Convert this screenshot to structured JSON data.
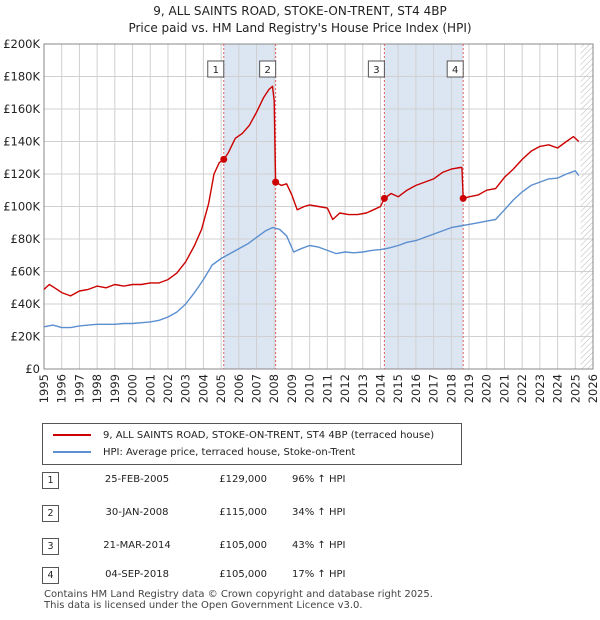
{
  "chart_data": {
    "type": "line",
    "title": "9, ALL SAINTS ROAD, STOKE-ON-TRENT, ST4 4BP",
    "subtitle": "Price paid vs. HM Land Registry's House Price Index (HPI)",
    "xlabel": "",
    "ylabel": "",
    "xlim": [
      1995,
      2026
    ],
    "ylim": [
      0,
      200000
    ],
    "x_ticks": [
      "1995",
      "1996",
      "1997",
      "1998",
      "1999",
      "2000",
      "2001",
      "2002",
      "2003",
      "2004",
      "2005",
      "2006",
      "2007",
      "2008",
      "2009",
      "2010",
      "2011",
      "2012",
      "2013",
      "2014",
      "2015",
      "2016",
      "2017",
      "2018",
      "2019",
      "2020",
      "2021",
      "2022",
      "2023",
      "2024",
      "2025",
      "2026"
    ],
    "y_ticks": [
      {
        "value": 0,
        "label": "£0"
      },
      {
        "value": 20000,
        "label": "£20K"
      },
      {
        "value": 40000,
        "label": "£40K"
      },
      {
        "value": 60000,
        "label": "£60K"
      },
      {
        "value": 80000,
        "label": "£80K"
      },
      {
        "value": 100000,
        "label": "£100K"
      },
      {
        "value": 120000,
        "label": "£120K"
      },
      {
        "value": 140000,
        "label": "£140K"
      },
      {
        "value": 160000,
        "label": "£160K"
      },
      {
        "value": 180000,
        "label": "£180K"
      },
      {
        "value": 200000,
        "label": "£200K"
      }
    ],
    "grid": true,
    "future_hatch_from": 2025.3,
    "series": [
      {
        "name": "9, ALL SAINTS ROAD, STOKE-ON-TRENT, ST4 4BP (terraced house)",
        "color": "#cc0000",
        "points": [
          [
            1995.0,
            49000
          ],
          [
            1995.3,
            52000
          ],
          [
            1995.6,
            50000
          ],
          [
            1996.0,
            47000
          ],
          [
            1996.5,
            45000
          ],
          [
            1997.0,
            48000
          ],
          [
            1997.5,
            49000
          ],
          [
            1998.0,
            51000
          ],
          [
            1998.5,
            50000
          ],
          [
            1999.0,
            52000
          ],
          [
            1999.5,
            51000
          ],
          [
            2000.0,
            52000
          ],
          [
            2000.5,
            52000
          ],
          [
            2001.0,
            53000
          ],
          [
            2001.5,
            53000
          ],
          [
            2002.0,
            55000
          ],
          [
            2002.5,
            59000
          ],
          [
            2003.0,
            66000
          ],
          [
            2003.5,
            76000
          ],
          [
            2003.9,
            86000
          ],
          [
            2004.3,
            102000
          ],
          [
            2004.6,
            120000
          ],
          [
            2004.9,
            127000
          ],
          [
            2005.15,
            129000
          ],
          [
            2005.4,
            133000
          ],
          [
            2005.8,
            142000
          ],
          [
            2006.2,
            145000
          ],
          [
            2006.6,
            150000
          ],
          [
            2007.0,
            158000
          ],
          [
            2007.4,
            167000
          ],
          [
            2007.7,
            172000
          ],
          [
            2007.9,
            174000
          ],
          [
            2008.0,
            165000
          ],
          [
            2008.08,
            115000
          ],
          [
            2008.4,
            113000
          ],
          [
            2008.7,
            114000
          ],
          [
            2009.0,
            107000
          ],
          [
            2009.3,
            98000
          ],
          [
            2009.7,
            100000
          ],
          [
            2010.0,
            101000
          ],
          [
            2010.5,
            100000
          ],
          [
            2011.0,
            99000
          ],
          [
            2011.3,
            92000
          ],
          [
            2011.7,
            96000
          ],
          [
            2012.2,
            95000
          ],
          [
            2012.7,
            95000
          ],
          [
            2013.2,
            96000
          ],
          [
            2013.6,
            98000
          ],
          [
            2014.0,
            100000
          ],
          [
            2014.22,
            105000
          ],
          [
            2014.6,
            108000
          ],
          [
            2015.0,
            106000
          ],
          [
            2015.5,
            110000
          ],
          [
            2016.0,
            113000
          ],
          [
            2016.5,
            115000
          ],
          [
            2017.0,
            117000
          ],
          [
            2017.5,
            121000
          ],
          [
            2018.0,
            123000
          ],
          [
            2018.5,
            124000
          ],
          [
            2018.6,
            124000
          ],
          [
            2018.67,
            105000
          ],
          [
            2019.0,
            106000
          ],
          [
            2019.5,
            107000
          ],
          [
            2020.0,
            110000
          ],
          [
            2020.5,
            111000
          ],
          [
            2021.0,
            118000
          ],
          [
            2021.5,
            123000
          ],
          [
            2022.0,
            129000
          ],
          [
            2022.5,
            134000
          ],
          [
            2023.0,
            137000
          ],
          [
            2023.5,
            138000
          ],
          [
            2024.0,
            136000
          ],
          [
            2024.5,
            140000
          ],
          [
            2024.9,
            143000
          ],
          [
            2025.2,
            140000
          ]
        ]
      },
      {
        "name": "HPI: Average price, terraced house, Stoke-on-Trent",
        "color": "#5b8fd0",
        "points": [
          [
            1995.0,
            26000
          ],
          [
            1995.5,
            27000
          ],
          [
            1996.0,
            25500
          ],
          [
            1996.5,
            25500
          ],
          [
            1997.0,
            26500
          ],
          [
            1997.5,
            27000
          ],
          [
            1998.0,
            27500
          ],
          [
            1998.5,
            27500
          ],
          [
            1999.0,
            27500
          ],
          [
            1999.5,
            28000
          ],
          [
            2000.0,
            28000
          ],
          [
            2000.5,
            28500
          ],
          [
            2001.0,
            29000
          ],
          [
            2001.5,
            30000
          ],
          [
            2002.0,
            32000
          ],
          [
            2002.5,
            35000
          ],
          [
            2003.0,
            40000
          ],
          [
            2003.5,
            47000
          ],
          [
            2004.0,
            55000
          ],
          [
            2004.5,
            64000
          ],
          [
            2005.0,
            68000
          ],
          [
            2005.5,
            71000
          ],
          [
            2006.0,
            74000
          ],
          [
            2006.5,
            77000
          ],
          [
            2007.0,
            81000
          ],
          [
            2007.5,
            85000
          ],
          [
            2007.9,
            87000
          ],
          [
            2008.3,
            86000
          ],
          [
            2008.7,
            82000
          ],
          [
            2009.1,
            72000
          ],
          [
            2009.5,
            74000
          ],
          [
            2010.0,
            76000
          ],
          [
            2010.5,
            75000
          ],
          [
            2011.0,
            73000
          ],
          [
            2011.5,
            71000
          ],
          [
            2012.0,
            72000
          ],
          [
            2012.5,
            71500
          ],
          [
            2013.0,
            72000
          ],
          [
            2013.5,
            73000
          ],
          [
            2014.0,
            73500
          ],
          [
            2014.5,
            74500
          ],
          [
            2015.0,
            76000
          ],
          [
            2015.5,
            78000
          ],
          [
            2016.0,
            79000
          ],
          [
            2016.5,
            81000
          ],
          [
            2017.0,
            83000
          ],
          [
            2017.5,
            85000
          ],
          [
            2018.0,
            87000
          ],
          [
            2018.5,
            88000
          ],
          [
            2019.0,
            89000
          ],
          [
            2019.5,
            90000
          ],
          [
            2020.0,
            91000
          ],
          [
            2020.5,
            92000
          ],
          [
            2021.0,
            98000
          ],
          [
            2021.5,
            104000
          ],
          [
            2022.0,
            109000
          ],
          [
            2022.5,
            113000
          ],
          [
            2023.0,
            115000
          ],
          [
            2023.5,
            117000
          ],
          [
            2024.0,
            117500
          ],
          [
            2024.5,
            120000
          ],
          [
            2025.0,
            122000
          ],
          [
            2025.2,
            119000
          ]
        ]
      }
    ],
    "sales": [
      {
        "num": "1",
        "x": 2005.15,
        "price": 129000,
        "date": "25-FEB-2005",
        "price_label": "£129,000",
        "hpi": "96% ↑ HPI"
      },
      {
        "num": "2",
        "x": 2008.08,
        "price": 115000,
        "date": "30-JAN-2008",
        "price_label": "£115,000",
        "hpi": "34% ↑ HPI"
      },
      {
        "num": "3",
        "x": 2014.22,
        "price": 105000,
        "date": "21-MAR-2014",
        "price_label": "£105,000",
        "hpi": "43% ↑ HPI"
      },
      {
        "num": "4",
        "x": 2018.67,
        "price": 105000,
        "date": "04-SEP-2018",
        "price_label": "£105,000",
        "hpi": "17% ↑ HPI"
      }
    ],
    "legend_position": "bottom"
  },
  "legend": {
    "property_label": "9, ALL SAINTS ROAD, STOKE-ON-TRENT, ST4 4BP (terraced house)",
    "hpi_label": "HPI: Average price, terraced house, Stoke-on-Trent"
  },
  "footer": {
    "line1": "Contains HM Land Registry data © Crown copyright and database right 2025.",
    "line2": "This data is licensed under the Open Government Licence v3.0."
  },
  "colors": {
    "property": "#cc0000",
    "hpi": "#5b8fd0",
    "shade": "#dce6f3",
    "grid": "#d0d0d0"
  }
}
